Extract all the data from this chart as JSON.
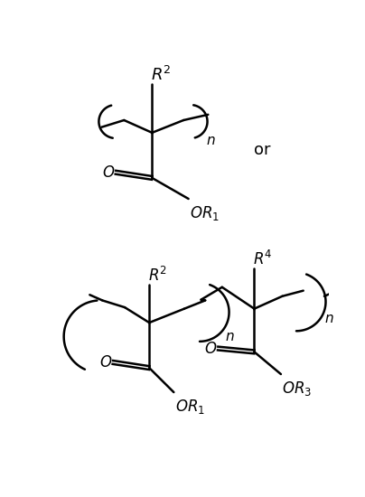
{
  "background_color": "#ffffff",
  "figsize": [
    4.04,
    5.5
  ],
  "dpi": 100,
  "line_color": "#000000",
  "text_color": "#000000",
  "lw": 1.8
}
